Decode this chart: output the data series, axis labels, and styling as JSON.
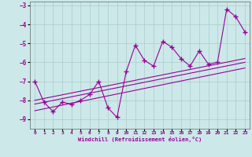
{
  "xlabel": "Windchill (Refroidissement éolien,°C)",
  "scatter_x": [
    0,
    1,
    2,
    3,
    4,
    5,
    6,
    7,
    8,
    9,
    10,
    11,
    12,
    13,
    14,
    15,
    16,
    17,
    18,
    19,
    20,
    21,
    22,
    23
  ],
  "scatter_y": [
    -7.0,
    -8.1,
    -8.6,
    -8.1,
    -8.2,
    -8.0,
    -7.7,
    -7.0,
    -8.4,
    -8.9,
    -6.5,
    -5.1,
    -5.9,
    -6.2,
    -4.9,
    -5.2,
    -5.8,
    -6.2,
    -5.4,
    -6.1,
    -6.0,
    -3.2,
    -3.6,
    -4.4
  ],
  "line1_x": [
    0,
    23
  ],
  "line1_y": [
    -8.0,
    -5.8
  ],
  "line2_x": [
    0,
    23
  ],
  "line2_y": [
    -8.2,
    -6.0
  ],
  "line3_x": [
    0,
    23
  ],
  "line3_y": [
    -8.55,
    -6.3
  ],
  "color": "#990099",
  "bg_color": "#cce8e8",
  "grid_color": "#aacccc",
  "xlim": [
    -0.5,
    23.5
  ],
  "ylim": [
    -9.5,
    -2.8
  ],
  "yticks": [
    -9,
    -8,
    -7,
    -6,
    -5,
    -4,
    -3
  ],
  "xticks": [
    0,
    1,
    2,
    3,
    4,
    5,
    6,
    7,
    8,
    9,
    10,
    11,
    12,
    13,
    14,
    15,
    16,
    17,
    18,
    19,
    20,
    21,
    22,
    23
  ]
}
